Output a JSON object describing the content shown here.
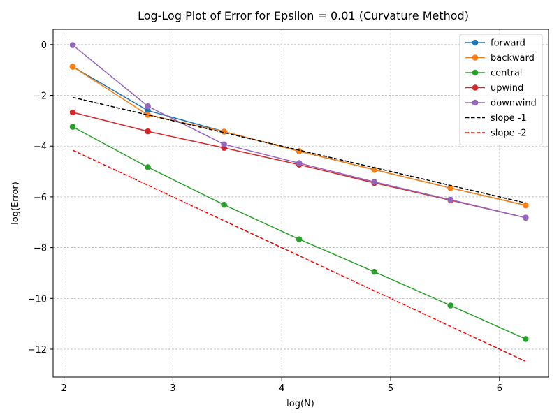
{
  "chart_data": {
    "type": "line",
    "title": "Log-Log Plot of Error for Epsilon = 0.01 (Curvature Method)",
    "xlabel": "log(N)",
    "ylabel": "log(Error)",
    "xlim": [
      1.9,
      6.45
    ],
    "ylim": [
      -13.1,
      0.6
    ],
    "xticks": [
      2,
      3,
      4,
      5,
      6
    ],
    "yticks": [
      0,
      -2,
      -4,
      -6,
      -8,
      -10,
      -12
    ],
    "grid": true,
    "legend_position": "top-right",
    "x": [
      2.08,
      2.77,
      3.47,
      4.16,
      4.85,
      5.55,
      6.24
    ],
    "series": [
      {
        "name": "forward",
        "color": "#1f77b4",
        "style": "solid",
        "marker": true,
        "values": [
          -0.87,
          -2.6,
          -3.43,
          -4.2,
          -4.93,
          -5.65,
          -6.33
        ]
      },
      {
        "name": "backward",
        "color": "#ff7f0e",
        "style": "solid",
        "marker": true,
        "values": [
          -0.87,
          -2.77,
          -3.43,
          -4.2,
          -4.93,
          -5.65,
          -6.33
        ]
      },
      {
        "name": "central",
        "color": "#2ca02c",
        "style": "solid",
        "marker": true,
        "values": [
          -3.24,
          -4.83,
          -6.31,
          -7.67,
          -8.95,
          -10.28,
          -11.6
        ]
      },
      {
        "name": "upwind",
        "color": "#d62728",
        "style": "solid",
        "marker": true,
        "values": [
          -2.67,
          -3.42,
          -4.07,
          -4.73,
          -5.45,
          -6.13,
          -6.82
        ]
      },
      {
        "name": "downwind",
        "color": "#9467bd",
        "style": "solid",
        "marker": true,
        "values": [
          -0.02,
          -2.43,
          -3.93,
          -4.67,
          -5.41,
          -6.11,
          -6.82
        ]
      },
      {
        "name": "slope -1",
        "color": "#000000",
        "style": "dashed",
        "marker": false,
        "line_x": [
          2.08,
          6.24
        ],
        "line_y": [
          -2.08,
          -6.24
        ]
      },
      {
        "name": "slope -2",
        "color": "#ff0000",
        "style": "dashed",
        "marker": false,
        "line_x": [
          2.08,
          6.24
        ],
        "line_y": [
          -4.16,
          -12.48
        ]
      }
    ]
  }
}
